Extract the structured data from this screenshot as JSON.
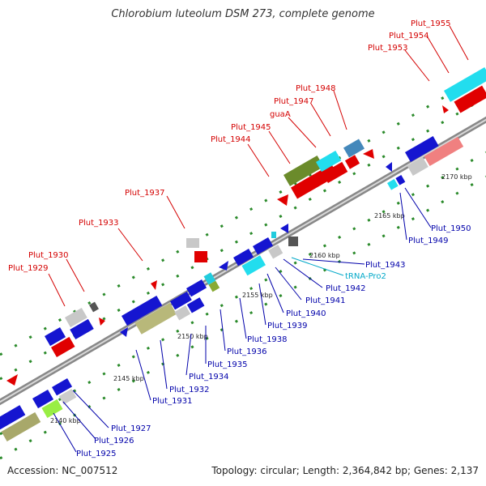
{
  "title": "Chlorobium luteolum DSM 273, complete genome",
  "footer": {
    "accession": "Accession: NC_007512",
    "topology": "Topology: circular; Length: 2,364,842 bp; Genes: 2,137"
  },
  "colors": {
    "label_top": "#d40000",
    "label_bottom": "#0000aa",
    "label_trna": "#00a8c8",
    "backbone": "#999999"
  },
  "ticks": [
    {
      "label": "2140 kbp"
    },
    {
      "label": "2145 kbp"
    },
    {
      "label": "2150 kbp"
    },
    {
      "label": "2155 kbp"
    },
    {
      "label": "2160 kbp"
    },
    {
      "label": "2165 kbp"
    },
    {
      "label": "2170 kbp"
    }
  ],
  "labels_top": [
    {
      "text": "Plut_1929"
    },
    {
      "text": "Plut_1930"
    },
    {
      "text": "Plut_1933"
    },
    {
      "text": "Plut_1937"
    },
    {
      "text": "Plut_1944"
    },
    {
      "text": "Plut_1945"
    },
    {
      "text": "guaA"
    },
    {
      "text": "Plut_1947"
    },
    {
      "text": "Plut_1948"
    },
    {
      "text": "Plut_1953"
    },
    {
      "text": "Plut_1954"
    },
    {
      "text": "Plut_1955"
    }
  ],
  "labels_bottom": [
    {
      "text": "Plut_1925",
      "color": "#0000aa"
    },
    {
      "text": "Plut_1926",
      "color": "#0000aa"
    },
    {
      "text": "Plut_1927",
      "color": "#0000aa"
    },
    {
      "text": "Plut_1931",
      "color": "#0000aa"
    },
    {
      "text": "Plut_1932",
      "color": "#0000aa"
    },
    {
      "text": "Plut_1934",
      "color": "#0000aa"
    },
    {
      "text": "Plut_1935",
      "color": "#0000aa"
    },
    {
      "text": "Plut_1936",
      "color": "#0000aa"
    },
    {
      "text": "Plut_1938",
      "color": "#0000aa"
    },
    {
      "text": "Plut_1939",
      "color": "#0000aa"
    },
    {
      "text": "Plut_1940",
      "color": "#0000aa"
    },
    {
      "text": "Plut_1941",
      "color": "#0000aa"
    },
    {
      "text": "Plut_1942",
      "color": "#0000aa"
    },
    {
      "text": "tRNA-Pro2",
      "color": "#00a8c8"
    },
    {
      "text": "Plut_1943",
      "color": "#0000aa"
    },
    {
      "text": "Plut_1949",
      "color": "#0000aa"
    },
    {
      "text": "Plut_1950",
      "color": "#0000aa"
    }
  ]
}
